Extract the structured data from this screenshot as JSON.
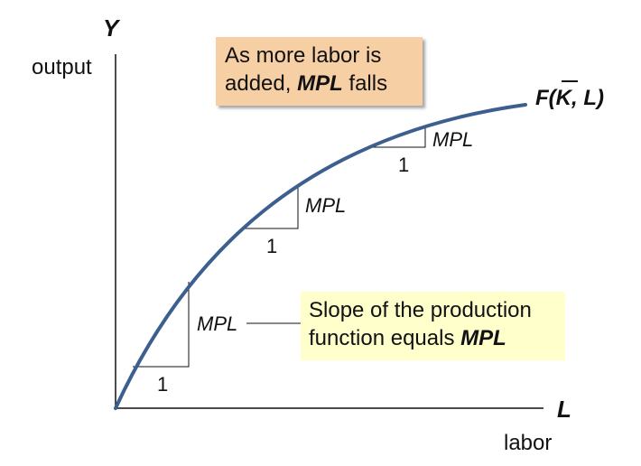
{
  "axes": {
    "y_letter": "Y",
    "y_word": "output",
    "x_letter": "L",
    "x_word": "labor"
  },
  "curve": {
    "label_prefix": "F(",
    "label_k": "K",
    "label_suffix": ", L)",
    "color": "#3c5f8f"
  },
  "slope_triangles": [
    {
      "rise_label": "MPL",
      "run_label": "1"
    },
    {
      "rise_label": "MPL",
      "run_label": "1"
    },
    {
      "rise_label": "MPL",
      "run_label": "1"
    }
  ],
  "notes": {
    "top": {
      "line1": "As more labor is",
      "line2_pre": "added, ",
      "line2_bold": "MPL",
      "line2_post": " falls",
      "background": "#f7cfa5"
    },
    "bottom": {
      "line1": "Slope of the production",
      "line2_pre": "function equals ",
      "line2_bold": "MPL",
      "background": "#ffffcc"
    }
  }
}
